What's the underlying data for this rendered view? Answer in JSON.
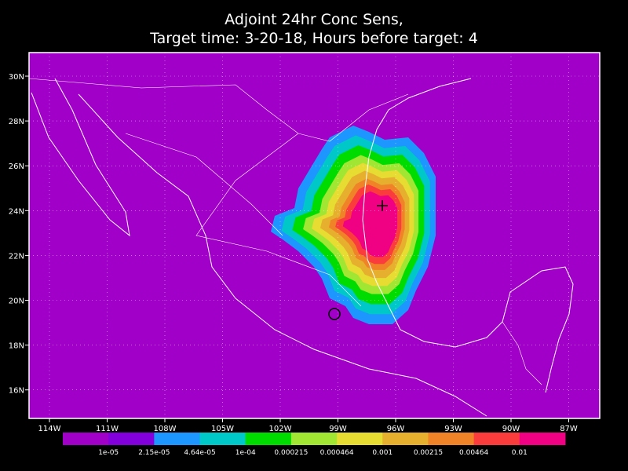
{
  "header": {
    "title": "Adjoint 24hr Conc Sens,",
    "subtitle": "Target time: 3-20-18, Hours before target: 4"
  },
  "map": {
    "latitude_labels": [
      "30N",
      "28N",
      "26N",
      "24N",
      "22N",
      "20N",
      "18N",
      "16N"
    ],
    "longitude_labels": [
      "114W",
      "111W",
      "108W",
      "105W",
      "102W",
      "99W",
      "96W",
      "93W",
      "90W",
      "87W"
    ]
  },
  "colorbar": {
    "labels": [
      "1e-05",
      "2.15e-05",
      "4.64e-05",
      "1e-04",
      "0.000215",
      "0.000464",
      "0.001",
      "0.00215",
      "0.00464",
      "0.01"
    ],
    "colors": [
      "#a000c8",
      "#8200dc",
      "#1e96ff",
      "#00c8c8",
      "#00dc00",
      "#a0e632",
      "#e6dc32",
      "#e6af2d",
      "#f08228",
      "#fa3c3c",
      "#f00082"
    ]
  }
}
